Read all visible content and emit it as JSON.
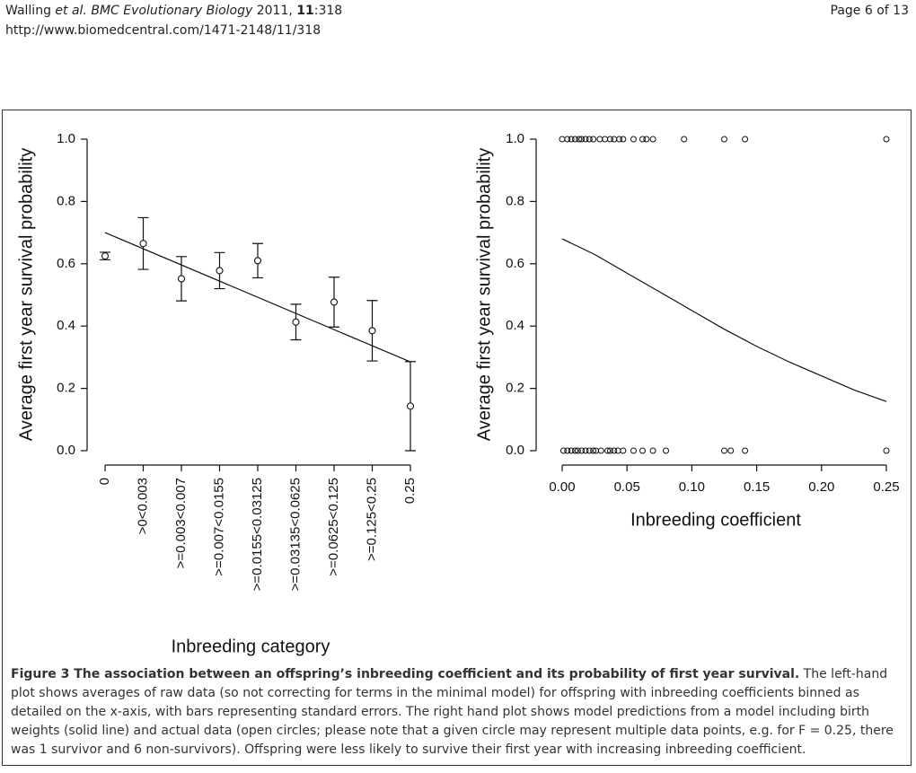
{
  "header": {
    "citation": [
      "Walling ",
      "et al.",
      " BMC Evolutionary Biology",
      " 2011, ",
      "11",
      ":318"
    ],
    "url": "http://www.biomedcentral.com/1471-2148/11/318",
    "page": "Page 6 of 13"
  },
  "chart_data": [
    {
      "type": "errorbar",
      "y_label": "Average first year survival probability",
      "x_label": "Inbreeding category",
      "categories": [
        "0",
        ">0<0.003",
        ">=0.003<0.007",
        ">=0.007<0.0155",
        ">=0.0155<0.03125",
        ">=0.03135<0.0625",
        ">=0.0625<0.125",
        ">=0.125<0.25",
        "0.25"
      ],
      "values": [
        0.625,
        0.665,
        0.552,
        0.578,
        0.61,
        0.413,
        0.477,
        0.385,
        0.143
      ],
      "errors": [
        0.012,
        0.083,
        0.071,
        0.058,
        0.055,
        0.057,
        0.08,
        0.097,
        0.143
      ],
      "fit_line": [
        0.7,
        0.285
      ],
      "ylim": [
        -0.04,
        1.04
      ],
      "yticks": [
        {
          "value": 0,
          "label": "0.0"
        },
        {
          "value": 0.2,
          "label": "0.2"
        },
        {
          "value": 0.4,
          "label": "0.4"
        },
        {
          "value": 0.6,
          "label": "0.6"
        },
        {
          "value": 0.8,
          "label": "0.8"
        },
        {
          "value": 1,
          "label": "1.0"
        }
      ]
    },
    {
      "type": "scatter",
      "y_label": "Average first year survival probability",
      "x_label": "Inbreeding coefficient",
      "points": {
        "x": [
          0.0,
          0.004,
          0.007,
          0.01,
          0.013,
          0.015,
          0.018,
          0.021,
          0.024,
          0.029,
          0.033,
          0.037,
          0.04,
          0.044,
          0.047,
          0.055,
          0.062,
          0.065,
          0.07,
          0.094,
          0.125,
          0.141,
          0.25,
          0.001,
          0.004,
          0.007,
          0.01,
          0.012,
          0.015,
          0.018,
          0.021,
          0.024,
          0.026,
          0.03,
          0.035,
          0.037,
          0.04,
          0.043,
          0.047,
          0.055,
          0.062,
          0.07,
          0.08,
          0.125,
          0.13,
          0.141,
          0.25
        ],
        "y": [
          1,
          1,
          1,
          1,
          1,
          1,
          1,
          1,
          1,
          1,
          1,
          1,
          1,
          1,
          1,
          1,
          1,
          1,
          1,
          1,
          1,
          1,
          1,
          0,
          0,
          0,
          0,
          0,
          0,
          0,
          0,
          0,
          0,
          0,
          0,
          0,
          0,
          0,
          0,
          0,
          0,
          0,
          0,
          0,
          0,
          0,
          0
        ]
      },
      "curve": {
        "x": [
          0,
          0.025,
          0.05,
          0.075,
          0.1,
          0.125,
          0.15,
          0.175,
          0.2,
          0.225,
          0.25
        ],
        "y": [
          0.68,
          0.63,
          0.57,
          0.51,
          0.45,
          0.39,
          0.335,
          0.285,
          0.24,
          0.195,
          0.158
        ]
      },
      "xlim": [
        -0.02,
        0.26
      ],
      "xticks": [
        {
          "value": 0,
          "label": "0.00"
        },
        {
          "value": 0.05,
          "label": "0.05"
        },
        {
          "value": 0.1,
          "label": "0.10"
        },
        {
          "value": 0.15,
          "label": "0.15"
        },
        {
          "value": 0.2,
          "label": "0.20"
        },
        {
          "value": 0.25,
          "label": "0.25"
        }
      ],
      "ylim": [
        -0.04,
        1.04
      ],
      "yticks": [
        {
          "value": 0,
          "label": "0.0"
        },
        {
          "value": 0.2,
          "label": "0.2"
        },
        {
          "value": 0.4,
          "label": "0.4"
        },
        {
          "value": 0.6,
          "label": "0.6"
        },
        {
          "value": 0.8,
          "label": "0.8"
        },
        {
          "value": 1,
          "label": "1.0"
        }
      ]
    }
  ],
  "caption": {
    "title": "Figure 3 The association between an offspring’s inbreeding coefficient and its probability of first year survival.",
    "body": " The left-hand plot shows averages of raw data (so not correcting for terms in the minimal model) for offspring with inbreeding coefficients binned as detailed on the x-axis, with bars representing standard errors. The right hand plot shows model predictions from a model including birth weights (solid line) and actual data (open circles; please note that a given circle may represent multiple data points, e.g. for F = 0.25, there was 1 survivor and 6 non-survivors). Offspring were less likely to survive their first year with increasing inbreeding coefficient."
  }
}
